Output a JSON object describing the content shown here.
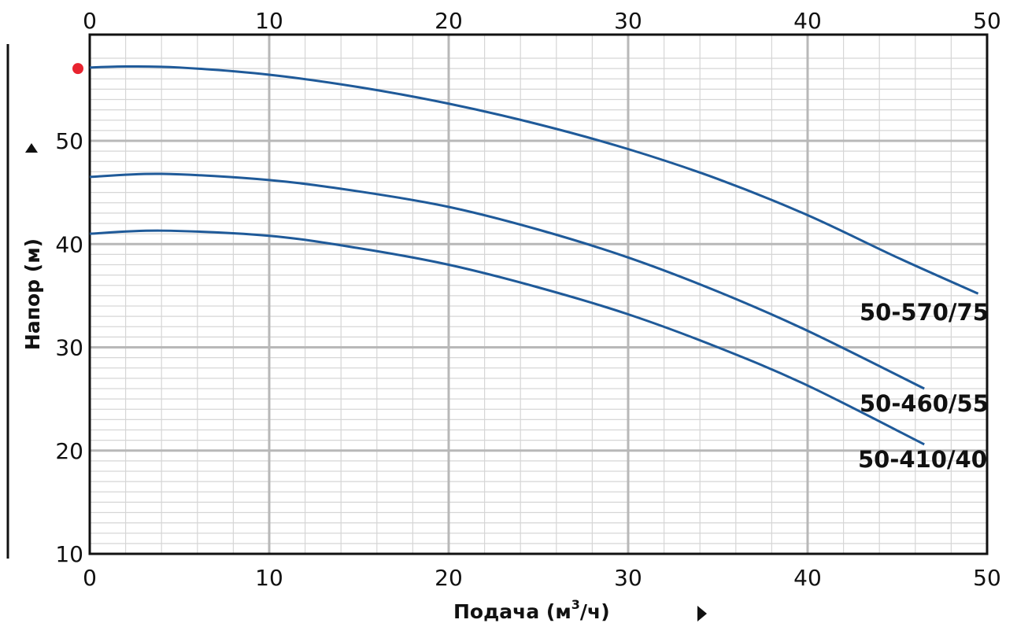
{
  "chart_data": {
    "type": "line",
    "xlabel": "Подача (м",
    "xlabel_sup": "3",
    "xlabel_end": "/ч)",
    "ylabel": "Напор (м)",
    "xlim": [
      0,
      50
    ],
    "ylim": [
      10,
      58
    ],
    "x_ticks": [
      "0",
      "10",
      "20",
      "30",
      "40",
      "50"
    ],
    "y_ticks": [
      "10",
      "20",
      "30",
      "40",
      "50"
    ],
    "grid": true,
    "series": [
      {
        "name": "50-570/75",
        "color": "#1f5a99",
        "x": [
          0,
          2,
          5,
          10,
          15,
          20,
          25,
          30,
          35,
          40,
          45,
          49.5
        ],
        "y": [
          57.1,
          57.2,
          57.1,
          56.4,
          55.2,
          53.6,
          51.6,
          49.2,
          46.3,
          42.8,
          38.7,
          35.2
        ]
      },
      {
        "name": "50-460/55",
        "color": "#1f5a99",
        "x": [
          0,
          4,
          10,
          15,
          20,
          25,
          30,
          35,
          40,
          46.5
        ],
        "y": [
          46.5,
          46.8,
          46.2,
          45.1,
          43.6,
          41.4,
          38.7,
          35.4,
          31.6,
          26.0
        ]
      },
      {
        "name": "50-410/40",
        "color": "#1f5a99",
        "x": [
          0,
          4,
          10,
          15,
          20,
          25,
          30,
          35,
          40,
          46.5
        ],
        "y": [
          41.0,
          41.3,
          40.8,
          39.6,
          38.0,
          35.8,
          33.2,
          30.0,
          26.3,
          20.6
        ]
      }
    ],
    "marker": {
      "x": -0.6,
      "y": 57.0,
      "color": "#e8232f"
    },
    "colors": {
      "grid_major": "#b8b8b8",
      "grid_minor": "#d6d6d6",
      "frame": "#111111"
    }
  }
}
